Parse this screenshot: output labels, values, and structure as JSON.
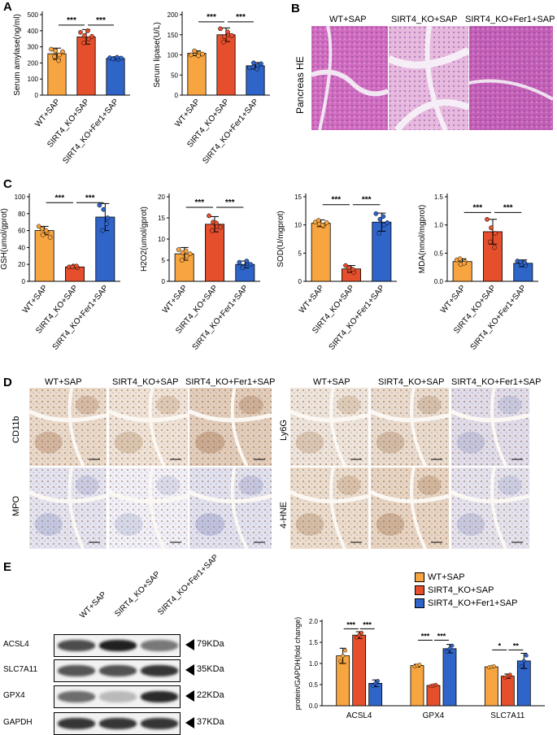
{
  "panels": {
    "a": "A",
    "b": "B",
    "c": "C",
    "d": "D",
    "e": "E"
  },
  "colors": {
    "wt": "#f7a540",
    "ko": "#e54f2c",
    "fer1": "#2f64c8",
    "he_stain": "#c86bb8",
    "ihc_brown": "#a6744e",
    "ihc_blue": "#b6bcd8"
  },
  "groups": [
    "WT+SAP",
    "SIRT4_KO+SAP",
    "SIRT4_KO+Fer1+SAP"
  ],
  "sig": "***",
  "panel_b": {
    "ylabel": "Pancreas HE",
    "columns": [
      "WT+SAP",
      "SIRT4_KO+SAP",
      "SIRT4_KO+Fer1+SAP"
    ]
  },
  "panel_d": {
    "left_columns": [
      "WT+SAP",
      "SIRT4_KO+SAP",
      "SIRT4_KO+Fer1+SAP"
    ],
    "right_columns": [
      "WT+SAP",
      "SIRT4_KO+SAP",
      "SIRT4_KO+Fer1+SAP"
    ],
    "left_rows": [
      "CD11b",
      "MPO"
    ],
    "right_rows": [
      "Ly6G",
      "4-HNE"
    ]
  },
  "panel_e_blot": {
    "columns": [
      "WT+SAP",
      "SIRT4_KO+SAP",
      "SIRT4_KO+Fer1+SAP"
    ],
    "rows": [
      {
        "name": "ACSL4",
        "kda": "79KDa"
      },
      {
        "name": "SLC7A11",
        "kda": "35KDa"
      },
      {
        "name": "GPX4",
        "kda": "22KDa"
      },
      {
        "name": "GAPDH",
        "kda": "37KDa"
      }
    ]
  },
  "chart_data": [
    {
      "type": "bar",
      "panel": "A-left",
      "categories": [
        "WT+SAP",
        "SIRT4_KO+SAP",
        "SIRT4_KO+Fer1+SAP"
      ],
      "values": [
        257,
        362,
        228
      ],
      "errors": [
        35,
        45,
        8
      ],
      "points": [
        [
          285,
          275,
          250,
          240,
          215,
          270
        ],
        [
          390,
          370,
          350,
          325,
          400,
          365
        ],
        [
          232,
          228,
          222,
          225,
          235,
          230
        ]
      ],
      "ylabel": "Serum amylase(ng/ml)",
      "ylim": [
        0,
        500
      ],
      "yticks": [
        "0",
        "100",
        "200",
        "300",
        "400",
        "500"
      ],
      "sig": [
        {
          "from": 0,
          "to": 1,
          "label": "***",
          "y": 435
        },
        {
          "from": 1,
          "to": 2,
          "label": "***",
          "y": 435
        }
      ]
    },
    {
      "type": "bar",
      "panel": "A-right",
      "categories": [
        "WT+SAP",
        "SIRT4_KO+SAP",
        "SIRT4_KO+Fer1+SAP"
      ],
      "values": [
        104,
        150,
        73
      ],
      "errors": [
        6,
        17,
        8
      ],
      "points": [
        [
          100,
          108,
          104,
          110,
          98,
          102
        ],
        [
          165,
          145,
          150,
          132,
          157,
          148
        ],
        [
          68,
          80,
          74,
          70,
          65,
          78
        ]
      ],
      "ylabel": "Serum lipase(U/L)",
      "ylim": [
        0,
        200
      ],
      "yticks": [
        "0",
        "50",
        "100",
        "150",
        "200"
      ],
      "sig": [
        {
          "from": 0,
          "to": 1,
          "label": "***",
          "y": 182
        },
        {
          "from": 1,
          "to": 2,
          "label": "***",
          "y": 182
        }
      ]
    },
    {
      "type": "bar",
      "panel": "C-1",
      "categories": [
        "WT+SAP",
        "SIRT4_KO+SAP",
        "SIRT4_KO+Fer1+SAP"
      ],
      "values": [
        60,
        17,
        76
      ],
      "errors": [
        5,
        1,
        16
      ],
      "points": [
        [
          65,
          55,
          58,
          62,
          60,
          52
        ],
        [
          17,
          18,
          16,
          17,
          18
        ],
        [
          90,
          85,
          75,
          60,
          68
        ]
      ],
      "ylabel": "GSH(umol/gprot)",
      "ylim": [
        0,
        100
      ],
      "yticks": [
        "0",
        "20",
        "40",
        "60",
        "80",
        "100"
      ],
      "sig": [
        {
          "from": 0,
          "to": 1,
          "label": "***",
          "y": 93
        },
        {
          "from": 1,
          "to": 2,
          "label": "***",
          "y": 93
        }
      ]
    },
    {
      "type": "bar",
      "panel": "C-2",
      "categories": [
        "WT+SAP",
        "SIRT4_KO+SAP",
        "SIRT4_KO+Fer1+SAP"
      ],
      "values": [
        6.5,
        13.5,
        4.0
      ],
      "errors": [
        1.5,
        1.8,
        0.8
      ],
      "points": [
        [
          7.5,
          6.8,
          6.0,
          5.0,
          7.2,
          6.5
        ],
        [
          15.5,
          14.0,
          13.0,
          12.0,
          13.8,
          12.8
        ],
        [
          4.5,
          3.5,
          4.2,
          3.2,
          4.8,
          4.0
        ]
      ],
      "ylabel": "H2O2(umol/gprot)",
      "ylim": [
        0,
        20
      ],
      "yticks": [
        "0",
        "5",
        "10",
        "15",
        "20"
      ],
      "sig": [
        {
          "from": 0,
          "to": 1,
          "label": "***",
          "y": 17.5
        },
        {
          "from": 1,
          "to": 2,
          "label": "***",
          "y": 17.5
        }
      ]
    },
    {
      "type": "bar",
      "panel": "C-3",
      "categories": [
        "WT+SAP",
        "SIRT4_KO+SAP",
        "SIRT4_KO+Fer1+SAP"
      ],
      "values": [
        10.3,
        2.2,
        10.5
      ],
      "errors": [
        0.6,
        0.6,
        1.6
      ],
      "points": [
        [
          10.5,
          10.2,
          9.8,
          10.8,
          10.0,
          10.4
        ],
        [
          2.8,
          2.0,
          1.6,
          2.4,
          2.1
        ],
        [
          12.0,
          11.0,
          10.0,
          8.5,
          11.5,
          10.4
        ]
      ],
      "ylabel": "SOD(U/mgprot)",
      "ylim": [
        0,
        15
      ],
      "yticks": [
        "0",
        "5",
        "10",
        "15"
      ],
      "sig": [
        {
          "from": 0,
          "to": 1,
          "label": "***",
          "y": 13.6
        },
        {
          "from": 1,
          "to": 2,
          "label": "***",
          "y": 13.6
        }
      ]
    },
    {
      "type": "bar",
      "panel": "C-4",
      "categories": [
        "WT+SAP",
        "SIRT4_KO+SAP",
        "SIRT4_KO+Fer1+SAP"
      ],
      "values": [
        0.35,
        0.88,
        0.32
      ],
      "errors": [
        0.05,
        0.22,
        0.06
      ],
      "points": [
        [
          0.38,
          0.3,
          0.35,
          0.4,
          0.32
        ],
        [
          1.1,
          0.95,
          0.85,
          0.7,
          0.6
        ],
        [
          0.36,
          0.3,
          0.28,
          0.35,
          0.33
        ]
      ],
      "ylabel": "MDA(nmol/mgprot)",
      "ylim": [
        0,
        1.5
      ],
      "yticks": [
        "0.0",
        "0.5",
        "1.0",
        "1.5"
      ],
      "sig": [
        {
          "from": 0,
          "to": 1,
          "label": "***",
          "y": 1.22
        },
        {
          "from": 1,
          "to": 2,
          "label": "***",
          "y": 1.22
        }
      ]
    },
    {
      "type": "bar",
      "panel": "E-right",
      "categories": [
        "ACSL4",
        "GPX4",
        "SLC7A11"
      ],
      "series": [
        {
          "name": "WT+SAP",
          "values": [
            1.18,
            0.95,
            0.92
          ],
          "errors": [
            0.18,
            0.03,
            0.02
          ]
        },
        {
          "name": "SIRT4_KO+SAP",
          "values": [
            1.67,
            0.48,
            0.7
          ],
          "errors": [
            0.08,
            0.02,
            0.05
          ]
        },
        {
          "name": "SIRT4_KO+Fer1+SAP",
          "values": [
            0.53,
            1.35,
            1.06
          ],
          "errors": [
            0.08,
            0.1,
            0.18
          ]
        }
      ],
      "ylabel": "protein/GAPDH(fold change)",
      "ylim": [
        0,
        2.0
      ],
      "yticks": [
        "0.0",
        "0.5",
        "1.0",
        "1.5",
        "2.0"
      ],
      "sig": [
        {
          "group": 0,
          "from": 0,
          "to": 1,
          "label": "***",
          "y": 1.82
        },
        {
          "group": 0,
          "from": 1,
          "to": 2,
          "label": "***",
          "y": 1.82
        },
        {
          "group": 1,
          "from": 0,
          "to": 1,
          "label": "***",
          "y": 1.55
        },
        {
          "group": 1,
          "from": 1,
          "to": 2,
          "label": "***",
          "y": 1.55
        },
        {
          "group": 2,
          "from": 0,
          "to": 1,
          "label": "*",
          "y": 1.32
        },
        {
          "group": 2,
          "from": 1,
          "to": 2,
          "label": "**",
          "y": 1.32
        }
      ]
    }
  ]
}
